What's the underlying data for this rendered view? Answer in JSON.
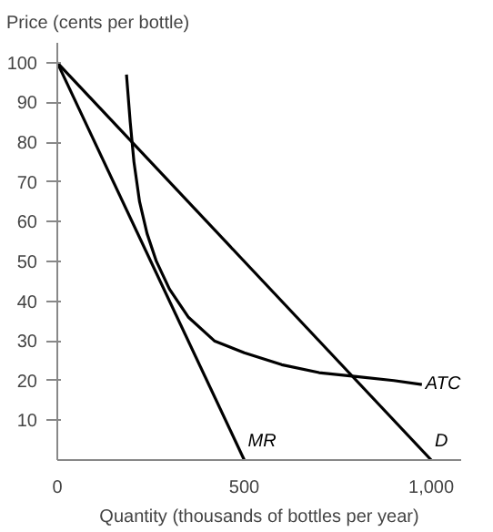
{
  "chart_data": {
    "type": "line",
    "ylabel": "Price (cents per bottle)",
    "xlabel": "Quantity (thousands of bottles per year)",
    "xlim": [
      0,
      1080
    ],
    "ylim": [
      0,
      105
    ],
    "xticks": [
      0,
      500,
      {
        "value": 1000,
        "label": "1,000"
      }
    ],
    "yticks": [
      10,
      20,
      30,
      40,
      50,
      60,
      70,
      80,
      90,
      100
    ],
    "grid": false,
    "marker": "none",
    "line_style": "solid",
    "series": [
      {
        "name": "MR",
        "color": "#000000",
        "x": [
          0,
          500
        ],
        "values": [
          100,
          0
        ]
      },
      {
        "name": "D",
        "color": "#000000",
        "x": [
          0,
          1000
        ],
        "values": [
          100,
          0
        ]
      },
      {
        "name": "ATC",
        "color": "#000000",
        "x": [
          185,
          195,
          205,
          220,
          240,
          265,
          300,
          350,
          420,
          500,
          600,
          700,
          800,
          900,
          975
        ],
        "values": [
          97,
          85,
          75,
          65,
          57,
          50,
          43,
          36,
          30,
          27,
          24,
          22,
          21,
          20,
          19
        ]
      }
    ]
  }
}
